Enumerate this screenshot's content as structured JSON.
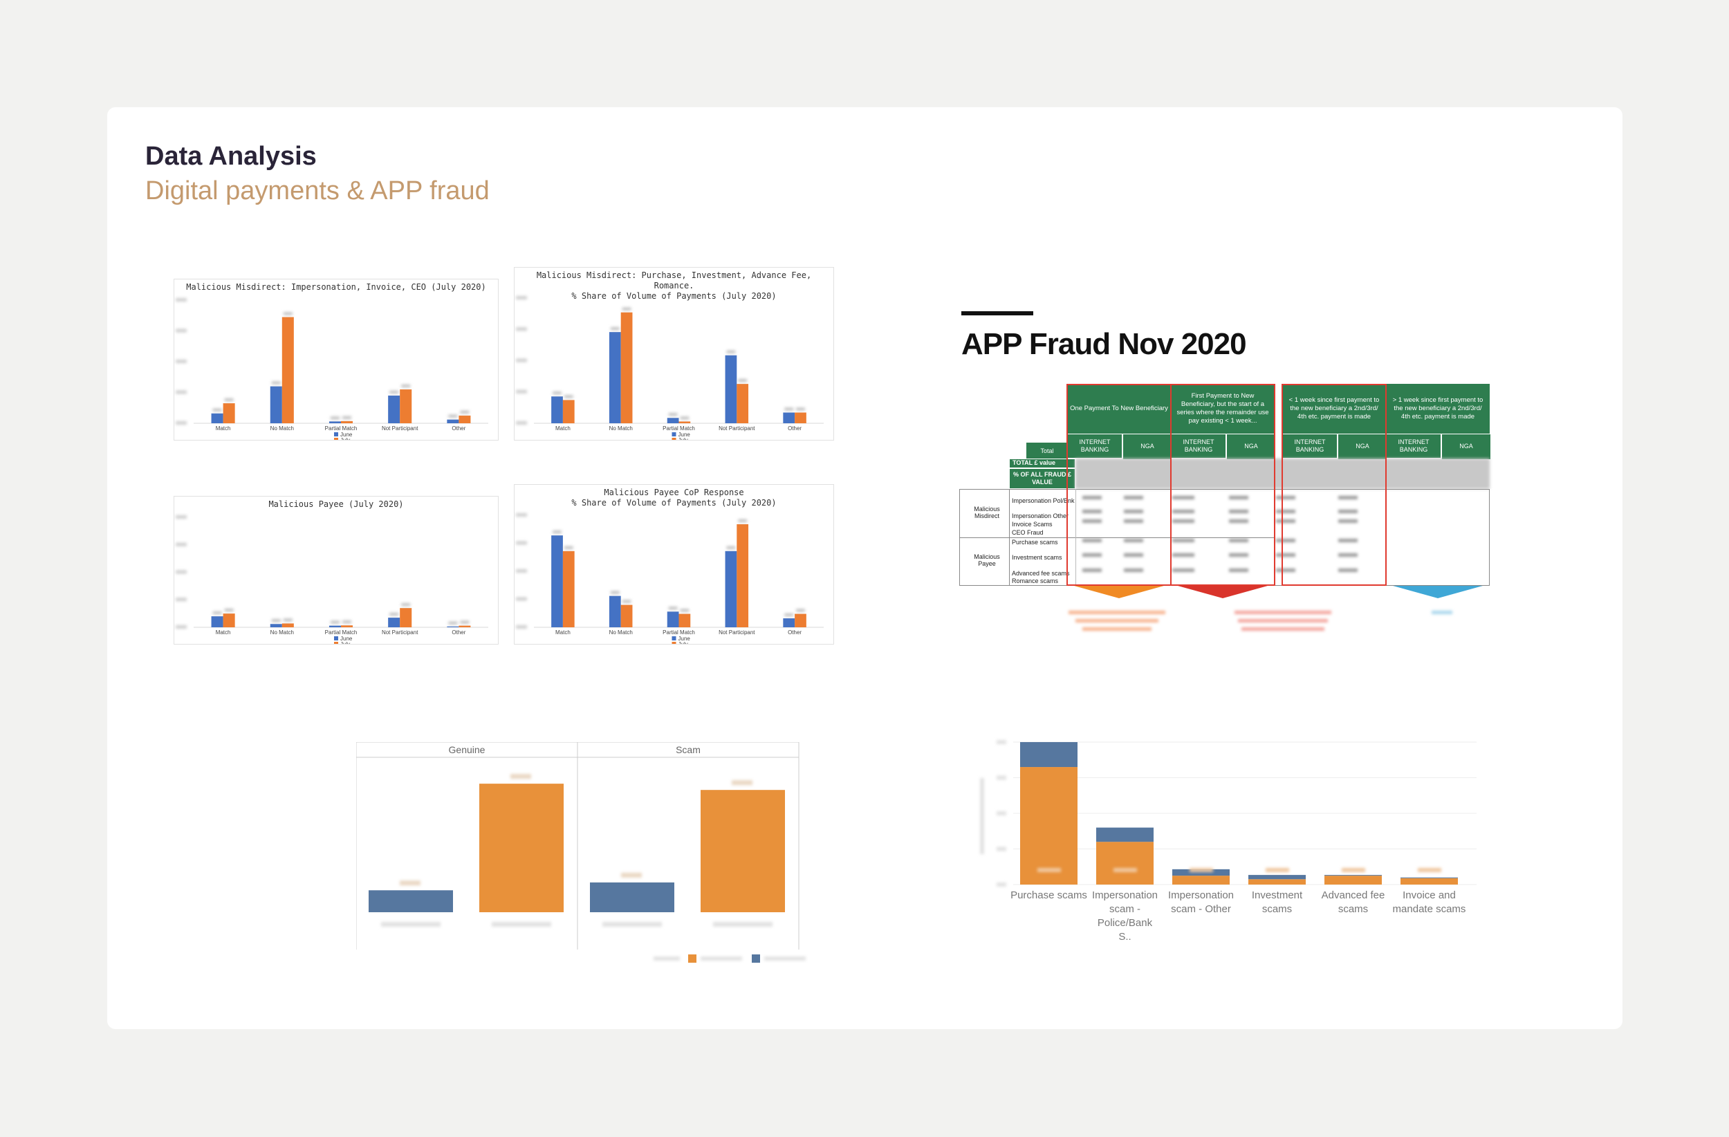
{
  "header": {
    "title": "Data Analysis",
    "subtitle": "Digital payments & APP fraud"
  },
  "app_fraud": {
    "title": "APP Fraud Nov 2020",
    "columns": [
      "One Payment To New Beneficiary",
      "First Payment to New Beneficiary, but the start of a series where the remainder use pay existing < 1 week...",
      "< 1 week since first payment to the new beneficiary a 2nd/3rd/ 4th etc. payment is made",
      "> 1 week since first payment to the new beneficiary a 2nd/3rd/ 4th etc. payment is made"
    ],
    "total_label": "Total",
    "sub_labels": [
      "INTERNET BANKING",
      "NGA"
    ],
    "row_headers": [
      "TOTAL £ value",
      "% OF ALL FRAUD £ VALUE"
    ],
    "groups": [
      {
        "label": "Malicious Misdirect",
        "rows": [
          "Impersonation Pol/Bnk",
          "Impersonation Other",
          "Invoice Scams",
          "CEO Fraud"
        ]
      },
      {
        "label": "Malicious Payee",
        "rows": [
          "Purchase scams",
          "Investment scams",
          "Advanced fee scams",
          "Romance scams"
        ]
      }
    ],
    "arrow_colors": [
      "#f08a24",
      "#d9342b",
      "#3fa7d6"
    ]
  },
  "colors": {
    "june": "#4472c4",
    "july": "#ed7d31",
    "cop_negative": "#e8913a",
    "cop_positive": "#56779f"
  },
  "chart_data": [
    {
      "type": "bar",
      "title": "Malicious Misdirect: Impersonation, Invoice, CEO (July 2020)",
      "categories": [
        "Match",
        "No Match",
        "Partial Match",
        "Not Participant",
        "Other"
      ],
      "series": [
        {
          "name": "June",
          "values": [
            32,
            120,
            6,
            90,
            12
          ]
        },
        {
          "name": "July",
          "values": [
            65,
            345,
            7,
            110,
            25
          ]
        }
      ],
      "ylim": [
        0,
        400
      ]
    },
    {
      "type": "bar",
      "title": "Malicious Misdirect: Purchase, Investment, Advance Fee, Romance.\n% Share of Volume of Payments (July 2020)",
      "categories": [
        "Match",
        "No Match",
        "Partial Match",
        "Not Participant",
        "Other"
      ],
      "series": [
        {
          "name": "June",
          "values": [
            15,
            51,
            3,
            38,
            6
          ]
        },
        {
          "name": "July",
          "values": [
            13,
            62,
            1,
            22,
            6
          ]
        }
      ],
      "ylim": [
        0,
        70
      ]
    },
    {
      "type": "bar",
      "title": "Malicious Payee (July 2020)",
      "categories": [
        "Match",
        "No Match",
        "Partial Match",
        "Not Participant",
        "Other"
      ],
      "series": [
        {
          "name": "June",
          "values": [
            40,
            12,
            6,
            35,
            3
          ]
        },
        {
          "name": "July",
          "values": [
            50,
            14,
            7,
            70,
            6
          ]
        }
      ],
      "ylim": [
        0,
        400
      ]
    },
    {
      "type": "bar",
      "title": "Malicious Payee CoP Response\n% Share of Volume of Payments (July 2020)",
      "categories": [
        "Match",
        "No Match",
        "Partial Match",
        "Not Participant",
        "Other"
      ],
      "series": [
        {
          "name": "June",
          "values": [
            41,
            14,
            7,
            34,
            4
          ]
        },
        {
          "name": "July",
          "values": [
            34,
            10,
            6,
            46,
            6
          ]
        }
      ],
      "ylim": [
        0,
        50
      ]
    },
    {
      "type": "bar",
      "facets": [
        "Genuine",
        "Scam"
      ],
      "series": [
        {
          "name": "Genuine",
          "values": [
            14,
            82
          ]
        },
        {
          "name": "Scam",
          "values": [
            19,
            78
          ]
        }
      ],
      "ylim": [
        0,
        90
      ]
    },
    {
      "type": "bar",
      "stacked": true,
      "categories": [
        "Purchase scams",
        "Impersonation scam - Police/Bank S..",
        "Impersonation scam - Other",
        "Investment scams",
        "Advanced fee scams",
        "Invoice and mandate scams"
      ],
      "series": [
        {
          "name": "Negative",
          "values": [
            33,
            12,
            2.5,
            1.5,
            2.5,
            1.8
          ]
        },
        {
          "name": "Positive",
          "values": [
            7,
            4,
            1.8,
            1.2,
            0.2,
            0.2
          ]
        }
      ],
      "ylim": [
        0,
        40
      ]
    }
  ]
}
